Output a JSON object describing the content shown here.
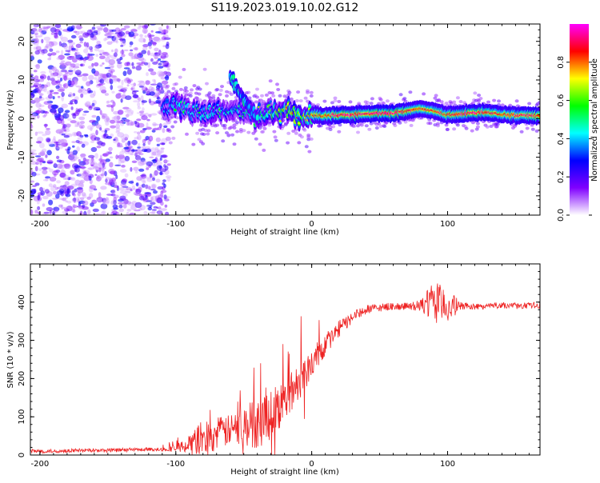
{
  "figure": {
    "title": "S119.2023.019.10.02.G12"
  },
  "chart_data": [
    {
      "type": "heatmap",
      "title": "S119.2023.019.10.02.G12",
      "xlabel": "Height of straight line (km)",
      "ylabel": "Frequency (Hz)",
      "xlim": [
        -207,
        168
      ],
      "ylim": [
        -25,
        24.5
      ],
      "xticks": [
        -200,
        -100,
        0,
        100
      ],
      "yticks": [
        -20,
        -10,
        0,
        10,
        20
      ],
      "colorbar": {
        "label": "Normalized spectral amplitude",
        "range": [
          0,
          1
        ],
        "ticks": [
          0.0,
          0.2,
          0.4,
          0.6,
          0.8
        ],
        "tick_labels": [
          "0.0",
          "0.2",
          "0.4",
          "0.6",
          "0.8"
        ],
        "colormap": [
          "#ffffff",
          "#8000ff",
          "#0000ff",
          "#00ffff",
          "#00ff00",
          "#ffff00",
          "#ff0000",
          "#ff00ff"
        ]
      },
      "ridge": [
        {
          "x": -110,
          "f": 2.8,
          "a": 0.35
        },
        {
          "x": -100,
          "f": 3.5,
          "a": 0.45
        },
        {
          "x": -90,
          "f": 2.0,
          "a": 0.45
        },
        {
          "x": -80,
          "f": 1.5,
          "a": 0.45
        },
        {
          "x": -70,
          "f": 2.2,
          "a": 0.45
        },
        {
          "x": -60,
          "f": 2.0,
          "a": 0.45
        },
        {
          "x": -50,
          "f": 1.5,
          "a": 0.45
        },
        {
          "x": -40,
          "f": 1.0,
          "a": 0.5
        },
        {
          "x": -30,
          "f": 1.5,
          "a": 0.55
        },
        {
          "x": -20,
          "f": 2.0,
          "a": 0.65
        },
        {
          "x": -10,
          "f": 1.0,
          "a": 0.75
        },
        {
          "x": 0,
          "f": 1.0,
          "a": 0.8
        },
        {
          "x": 10,
          "f": 0.8,
          "a": 0.85
        },
        {
          "x": 20,
          "f": 0.9,
          "a": 0.95
        },
        {
          "x": 30,
          "f": 1.0,
          "a": 0.95
        },
        {
          "x": 40,
          "f": 1.2,
          "a": 0.9
        },
        {
          "x": 50,
          "f": 1.4,
          "a": 0.95
        },
        {
          "x": 60,
          "f": 1.3,
          "a": 0.95
        },
        {
          "x": 70,
          "f": 2.0,
          "a": 0.9
        },
        {
          "x": 80,
          "f": 2.5,
          "a": 0.85
        },
        {
          "x": 90,
          "f": 2.0,
          "a": 0.85
        },
        {
          "x": 100,
          "f": 1.0,
          "a": 0.85
        },
        {
          "x": 110,
          "f": 1.3,
          "a": 0.9
        },
        {
          "x": 120,
          "f": 1.5,
          "a": 0.95
        },
        {
          "x": 130,
          "f": 1.6,
          "a": 0.9
        },
        {
          "x": 140,
          "f": 1.0,
          "a": 0.85
        },
        {
          "x": 150,
          "f": 0.9,
          "a": 0.9
        },
        {
          "x": 168,
          "f": 0.8,
          "a": 0.9
        }
      ],
      "branch": [
        {
          "x": -60,
          "f": 10.5,
          "a": 0.6
        },
        {
          "x": -55,
          "f": 8.0,
          "a": 0.5
        },
        {
          "x": -50,
          "f": 5.0,
          "a": 0.55
        },
        {
          "x": -45,
          "f": 2.5,
          "a": 0.5
        },
        {
          "x": -40,
          "f": 0.0,
          "a": 0.5
        }
      ],
      "noise_region": {
        "x_from": -207,
        "x_to": -105,
        "f_from": -25,
        "f_to": 24.5,
        "max_amplitude": 0.25
      }
    },
    {
      "type": "line",
      "xlabel": "Height of straight line (km)",
      "ylabel": "SNR (10 * v/v)",
      "xlim": [
        -207,
        168
      ],
      "ylim": [
        0,
        500
      ],
      "xticks": [
        -200,
        -100,
        0,
        100
      ],
      "yticks": [
        0,
        100,
        200,
        300,
        400
      ],
      "color": "#ee2222",
      "series": [
        {
          "name": "SNR",
          "x": [
            -207,
            -190,
            -170,
            -150,
            -130,
            -110,
            -100,
            -90,
            -80,
            -70,
            -60,
            -50,
            -40,
            -30,
            -20,
            -10,
            0,
            10,
            20,
            30,
            40,
            50,
            60,
            70,
            80,
            90,
            100,
            110,
            120,
            130,
            140,
            150,
            168
          ],
          "values": [
            10,
            10,
            12,
            12,
            14,
            15,
            18,
            30,
            45,
            55,
            65,
            75,
            85,
            110,
            140,
            190,
            240,
            290,
            330,
            360,
            380,
            385,
            390,
            388,
            390,
            400,
            390,
            390,
            388,
            390,
            392,
            390,
            392
          ],
          "noise": [
            5,
            5,
            5,
            5,
            5,
            5,
            10,
            20,
            50,
            45,
            40,
            55,
            70,
            70,
            60,
            50,
            40,
            30,
            22,
            15,
            12,
            10,
            10,
            10,
            15,
            55,
            45,
            10,
            8,
            8,
            8,
            8,
            8
          ]
        }
      ]
    }
  ]
}
